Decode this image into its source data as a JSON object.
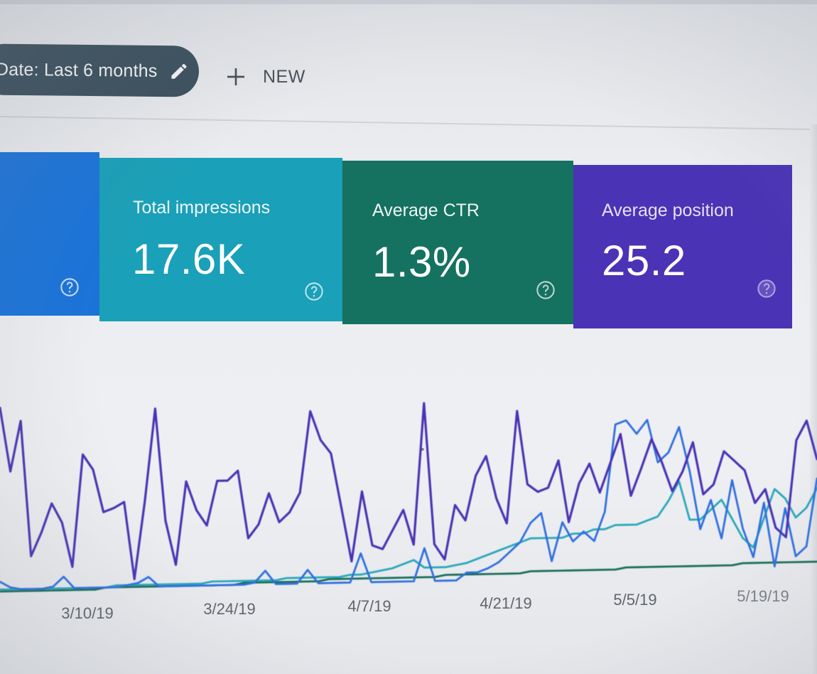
{
  "toolbar": {
    "date_filter_label": "Date: Last 6 months",
    "new_label": "NEW",
    "icons": [
      "pencil-icon",
      "plus-icon"
    ]
  },
  "metrics": [
    {
      "id": "clicks",
      "title": "",
      "value": "",
      "color": "#1a73d9"
    },
    {
      "id": "impressions",
      "title": "Total impressions",
      "value": "17.6K",
      "color": "#1aa0b8"
    },
    {
      "id": "ctr",
      "title": "Average CTR",
      "value": "1.3%",
      "color": "#157160"
    },
    {
      "id": "position",
      "title": "Average position",
      "value": "25.2",
      "color": "#4a33b5"
    }
  ],
  "chart_data": {
    "type": "line",
    "title": "",
    "xlabel": "",
    "ylabel": "",
    "x_tick_labels": [
      "3/10/19",
      "3/24/19",
      "4/7/19",
      "4/21/19",
      "5/5/19",
      "5/19/19"
    ],
    "grid": false,
    "legend": "none",
    "ylim": [
      0,
      100
    ],
    "series": [
      {
        "color": "#4a33b5",
        "values": [
          95,
          62,
          88,
          18,
          30,
          45,
          35,
          12,
          70,
          62,
          40,
          42,
          45,
          5,
          45,
          93,
          35,
          12,
          55,
          40,
          32,
          55,
          55,
          60,
          25,
          32,
          48,
          33,
          38,
          48,
          90,
          75,
          68,
          40,
          12,
          48,
          20,
          18,
          28,
          38,
          20,
          93,
          20,
          12,
          40,
          32,
          55,
          65,
          43,
          30,
          88,
          50,
          46,
          48,
          62,
          30,
          50,
          60,
          45,
          60,
          75,
          43,
          57,
          72,
          60,
          45,
          55,
          70,
          43,
          48,
          65,
          60,
          55,
          38,
          45,
          25,
          20,
          70,
          80,
          60
        ]
      },
      {
        "color": "#2f6fe0",
        "values": [
          5,
          2,
          1,
          1,
          1,
          2,
          7,
          1,
          1,
          1,
          1,
          1,
          2,
          3,
          6,
          1,
          1,
          1,
          1,
          1,
          1,
          1,
          1,
          1,
          2,
          8,
          1,
          1,
          1,
          8,
          1,
          1,
          1,
          1,
          16,
          1,
          1,
          1,
          1,
          1,
          18,
          1,
          1,
          1,
          5,
          5,
          7,
          10,
          15,
          20,
          30,
          35,
          10,
          30,
          20,
          25,
          20,
          35,
          80,
          82,
          75,
          82,
          60,
          65,
          78,
          55,
          25,
          40,
          20,
          50,
          25,
          10,
          38,
          5,
          35,
          10,
          15,
          50
        ]
      },
      {
        "color": "#2aa7bb",
        "values": [
          1,
          1,
          1,
          1,
          1,
          1,
          1,
          1,
          1,
          1,
          1,
          2,
          2,
          2,
          2,
          2,
          2,
          2,
          2,
          2,
          3,
          3,
          3,
          3,
          3,
          3,
          3,
          4,
          4,
          4,
          4,
          4,
          4,
          5,
          5,
          6,
          7,
          8,
          10,
          12,
          8,
          8,
          8,
          9,
          10,
          12,
          14,
          16,
          18,
          20,
          22,
          22,
          22,
          22,
          24,
          24,
          26,
          26,
          28,
          28,
          28,
          30,
          32,
          40,
          50,
          30,
          30,
          35,
          40,
          30,
          20,
          15,
          30,
          45,
          40,
          30,
          35,
          45
        ]
      },
      {
        "color": "#1a6e57",
        "values": [
          0,
          0,
          0,
          0,
          0,
          0,
          0,
          0,
          0,
          0,
          1,
          1,
          1,
          1,
          1,
          1,
          1,
          1,
          1,
          1,
          1,
          1,
          1,
          2,
          2,
          2,
          2,
          2,
          2,
          2,
          2,
          3,
          3,
          3,
          3,
          3,
          3,
          3,
          3,
          3,
          3,
          3,
          4,
          4,
          4,
          4,
          4,
          4,
          4,
          4,
          5,
          5,
          5,
          5,
          5,
          5,
          5,
          5,
          5,
          6,
          6,
          6,
          6,
          6,
          6,
          6,
          6,
          6,
          6,
          6,
          7,
          7,
          7,
          7,
          7,
          7,
          7,
          7
        ]
      }
    ]
  }
}
